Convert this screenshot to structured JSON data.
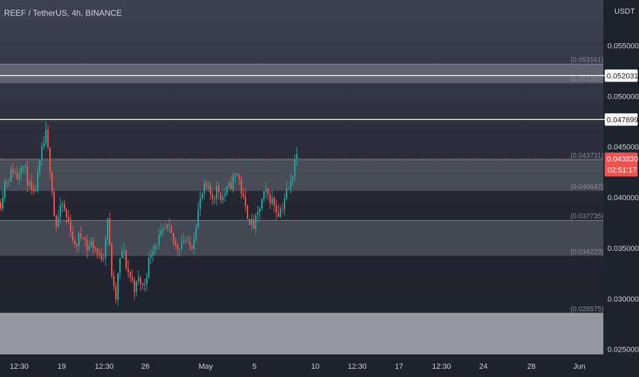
{
  "header": {
    "title": "REEF / TetherUS, 4h, BINANCE",
    "currency": "USDT"
  },
  "price_tag": {
    "value": "0.043830",
    "countdown": "02:51:17",
    "color": "#ef5350"
  },
  "chart_data": {
    "type": "candlestick",
    "title": "REEF / TetherUS, 4h, BINANCE",
    "ylabel": "USDT",
    "ylim": [
      0.0245,
      0.0595
    ],
    "y_ticks": [
      "0.055000",
      "0.050000",
      "0.045000",
      "0.040000",
      "0.035000",
      "0.030000",
      "0.025000"
    ],
    "y_tick_values": [
      0.055,
      0.05,
      0.045,
      0.04,
      0.035,
      0.03,
      0.025
    ],
    "x_ticks": [
      "12:30",
      "19",
      "12:30",
      "26",
      "May",
      "5",
      "10",
      "12:30",
      "17",
      "12:30",
      "24",
      "28",
      "Jun"
    ],
    "colors": {
      "up": "#26a69a",
      "down": "#ef5350",
      "line": "#ffffff"
    },
    "horizontal_lines": [
      {
        "value": 0.052031,
        "label": "0.052031"
      },
      {
        "value": 0.047699,
        "label": "0.047699"
      }
    ],
    "last_price_line": 0.04383,
    "zones": [
      {
        "top": 0.053161,
        "bottom": 0.051283,
        "top_label": "(0.053161)",
        "bottom_label": "(0.051283)",
        "shade": "light"
      },
      {
        "top": 0.043731,
        "bottom": 0.040642,
        "top_label": "(0.043731)",
        "bottom_label": "(0.040642)",
        "shade": "medium"
      },
      {
        "top": 0.037735,
        "bottom": 0.034223,
        "top_label": "(0.037735)",
        "bottom_label": "(0.034223)",
        "shade": "medium"
      },
      {
        "top": 0.028575,
        "bottom": 0.0245,
        "top_label": "(0.028575)",
        "bottom_label": "",
        "shade": "bright"
      }
    ],
    "path": [
      [
        0,
        0.0395
      ],
      [
        6,
        0.0415
      ],
      [
        12,
        0.042
      ],
      [
        18,
        0.0428
      ],
      [
        24,
        0.042
      ],
      [
        30,
        0.0435
      ],
      [
        36,
        0.0425
      ],
      [
        42,
        0.041
      ],
      [
        48,
        0.04
      ],
      [
        54,
        0.042
      ],
      [
        60,
        0.0445
      ],
      [
        66,
        0.0462
      ],
      [
        70,
        0.044
      ],
      [
        74,
        0.042
      ],
      [
        77,
        0.039
      ],
      [
        80,
        0.037
      ],
      [
        84,
        0.038
      ],
      [
        90,
        0.0393
      ],
      [
        96,
        0.038
      ],
      [
        102,
        0.037
      ],
      [
        108,
        0.035
      ],
      [
        114,
        0.036
      ],
      [
        120,
        0.0365
      ],
      [
        126,
        0.035
      ],
      [
        132,
        0.0355
      ],
      [
        138,
        0.035
      ],
      [
        144,
        0.034
      ],
      [
        150,
        0.0345
      ],
      [
        156,
        0.038
      ],
      [
        160,
        0.034
      ],
      [
        164,
        0.031
      ],
      [
        168,
        0.03
      ],
      [
        172,
        0.033
      ],
      [
        178,
        0.035
      ],
      [
        184,
        0.033
      ],
      [
        190,
        0.032
      ],
      [
        196,
        0.031
      ],
      [
        202,
        0.032
      ],
      [
        208,
        0.031
      ],
      [
        214,
        0.033
      ],
      [
        220,
        0.035
      ],
      [
        226,
        0.0355
      ],
      [
        232,
        0.036
      ],
      [
        238,
        0.0365
      ],
      [
        244,
        0.037
      ],
      [
        250,
        0.036
      ],
      [
        256,
        0.035
      ],
      [
        262,
        0.0355
      ],
      [
        268,
        0.036
      ],
      [
        274,
        0.035
      ],
      [
        280,
        0.0355
      ],
      [
        286,
        0.038
      ],
      [
        292,
        0.04
      ],
      [
        298,
        0.041
      ],
      [
        304,
        0.0405
      ],
      [
        310,
        0.04
      ],
      [
        316,
        0.041
      ],
      [
        322,
        0.04
      ],
      [
        328,
        0.0405
      ],
      [
        334,
        0.041
      ],
      [
        340,
        0.042
      ],
      [
        346,
        0.0425
      ],
      [
        350,
        0.041
      ],
      [
        356,
        0.039
      ],
      [
        362,
        0.038
      ],
      [
        368,
        0.037
      ],
      [
        374,
        0.038
      ],
      [
        380,
        0.0395
      ],
      [
        386,
        0.0405
      ],
      [
        392,
        0.04
      ],
      [
        398,
        0.0395
      ],
      [
        404,
        0.0385
      ],
      [
        410,
        0.039
      ],
      [
        416,
        0.0405
      ],
      [
        422,
        0.041
      ],
      [
        426,
        0.0425
      ],
      [
        430,
        0.0445
      ],
      [
        434,
        0.0438
      ]
    ]
  }
}
